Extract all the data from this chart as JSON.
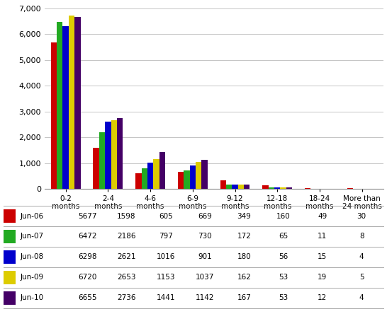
{
  "categories": [
    "0-2\nmonths",
    "2-4\nmonths",
    "4-6\nmonths",
    "6-9\nmonths",
    "9-12\nmonths",
    "12-18\nmonths",
    "18-24\nmonths",
    "More than\n24 months"
  ],
  "series": [
    {
      "label": "Jun-06",
      "color": "#cc0000",
      "values": [
        5677,
        1598,
        605,
        669,
        349,
        160,
        49,
        30
      ]
    },
    {
      "label": "Jun-07",
      "color": "#22aa22",
      "values": [
        6472,
        2186,
        797,
        730,
        172,
        65,
        11,
        8
      ]
    },
    {
      "label": "Jun-08",
      "color": "#0000cc",
      "values": [
        6298,
        2621,
        1016,
        901,
        180,
        56,
        15,
        4
      ]
    },
    {
      "label": "Jun-09",
      "color": "#ddcc00",
      "values": [
        6720,
        2653,
        1153,
        1037,
        162,
        53,
        19,
        5
      ]
    },
    {
      "label": "Jun-10",
      "color": "#440066",
      "values": [
        6655,
        2736,
        1441,
        1142,
        167,
        53,
        12,
        4
      ]
    }
  ],
  "ylim": [
    0,
    7000
  ],
  "yticks": [
    0,
    1000,
    2000,
    3000,
    4000,
    5000,
    6000,
    7000
  ],
  "table_rows": [
    [
      "Jun-06",
      5677,
      1598,
      605,
      669,
      349,
      160,
      49,
      30
    ],
    [
      "Jun-07",
      6472,
      2186,
      797,
      730,
      172,
      65,
      11,
      8
    ],
    [
      "Jun-08",
      6298,
      2621,
      1016,
      901,
      180,
      56,
      15,
      4
    ],
    [
      "Jun-09",
      6720,
      2653,
      1153,
      1037,
      162,
      53,
      19,
      5
    ],
    [
      "Jun-10",
      6655,
      2736,
      1441,
      1142,
      167,
      53,
      12,
      4
    ]
  ],
  "bar_colors": [
    "#cc0000",
    "#22aa22",
    "#0000cc",
    "#ddcc00",
    "#440066"
  ],
  "background_color": "#ffffff",
  "border_color": "#aaaaaa",
  "fig_width": 5.46,
  "fig_height": 4.61,
  "dpi": 100
}
